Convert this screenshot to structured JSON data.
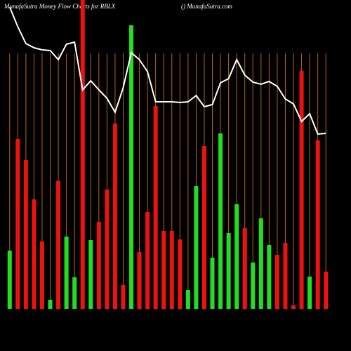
{
  "chart_data": {
    "type": "bar",
    "title": "MunafaSutra  Money Flow  Charts for RBLX",
    "subtitle": "() MunafaSutra.com",
    "categories": [
      null,
      null,
      null,
      null,
      null,
      null,
      null,
      null,
      null,
      null,
      null,
      null,
      null,
      null,
      null,
      null,
      null,
      null,
      null,
      null,
      null,
      null,
      null,
      null,
      null,
      null,
      null,
      null,
      null,
      null,
      null,
      null,
      null,
      null,
      null,
      null,
      null,
      null,
      null,
      null
    ],
    "values": [
      83,
      242,
      212,
      156,
      96,
      13,
      182,
      103,
      45,
      440,
      98,
      124,
      170,
      264,
      34,
      404,
      81,
      138,
      289,
      111,
      111,
      99,
      27,
      175,
      232,
      73,
      250,
      108,
      149,
      115,
      66,
      129,
      91,
      77,
      94,
      5,
      339,
      46,
      240,
      53
    ],
    "colors": [
      "#22dd22",
      "#ee1111",
      "#ee1111",
      "#ee1111",
      "#ee1111",
      "#22dd22",
      "#ee1111",
      "#22dd22",
      "#22dd22",
      "#ee1111",
      "#22dd22",
      "#ee1111",
      "#ee1111",
      "#ee1111",
      "#ee1111",
      "#22dd22",
      "#ee1111",
      "#ee1111",
      "#ee1111",
      "#ee1111",
      "#ee1111",
      "#ee1111",
      "#22dd22",
      "#22dd22",
      "#ee1111",
      "#22dd22",
      "#22dd22",
      "#22dd22",
      "#22dd22",
      "#ee1111",
      "#22dd22",
      "#22dd22",
      "#22dd22",
      "#ee1111",
      "#ee1111",
      "#ee1111",
      "#ee1111",
      "#22dd22",
      "#ee1111",
      "#ee1111"
    ],
    "line": {
      "color": "#ffffff",
      "values": [
        430,
        402,
        378,
        372,
        369,
        368,
        355,
        377,
        380,
        312,
        325,
        312,
        300,
        280,
        315,
        365,
        355,
        338,
        295,
        295,
        295,
        294,
        295,
        304,
        288,
        291,
        322,
        328,
        355,
        333,
        323,
        320,
        324,
        317,
        299,
        292,
        267,
        278,
        249,
        250
      ]
    },
    "ylim": [
      0,
      440
    ]
  }
}
